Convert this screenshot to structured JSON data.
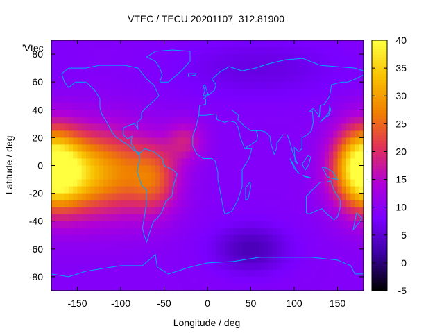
{
  "chart_data": {
    "type": "heatmap",
    "title": "VTEC / TECU 20201107_312.81900",
    "xlabel": "Longitude / deg",
    "ylabel": "Latitude / deg",
    "series_label": "'Vtec_",
    "xlim": [
      -180,
      180
    ],
    "ylim": [
      -90,
      90
    ],
    "xticks": [
      -150,
      -100,
      -50,
      0,
      50,
      100,
      150
    ],
    "yticks": [
      -80,
      -60,
      -40,
      -20,
      0,
      20,
      40,
      60,
      80
    ],
    "colorbar": {
      "range": [
        -5,
        40
      ],
      "ticks": [
        -5,
        0,
        5,
        10,
        15,
        20,
        25,
        30,
        35,
        40
      ]
    },
    "grid": false,
    "colormap_stops": [
      "#000000",
      "#3b00a0",
      "#7a00ff",
      "#b000d8",
      "#e0305a",
      "#f08000",
      "#f8c000",
      "#ffff40"
    ],
    "blobs": [
      {
        "lon": -170,
        "lat": -5,
        "sigma_lon": 28,
        "sigma_lat": 20,
        "amp": 20
      },
      {
        "lon": -115,
        "lat": -5,
        "sigma_lon": 38,
        "sigma_lat": 22,
        "amp": 18
      },
      {
        "lon": -60,
        "lat": -10,
        "sigma_lon": 20,
        "sigma_lat": 18,
        "amp": 11
      },
      {
        "lon": 175,
        "lat": 0,
        "sigma_lon": 22,
        "sigma_lat": 20,
        "amp": 17
      },
      {
        "lon": -25,
        "lat": 18,
        "sigma_lon": 15,
        "sigma_lat": 10,
        "amp": 8
      },
      {
        "lon": 50,
        "lat": -60,
        "sigma_lon": 30,
        "sigma_lat": 12,
        "amp": -6
      },
      {
        "lon": 60,
        "lat": 70,
        "sigma_lon": 70,
        "sigma_lat": 15,
        "amp": -3
      }
    ],
    "background_level": 9
  }
}
